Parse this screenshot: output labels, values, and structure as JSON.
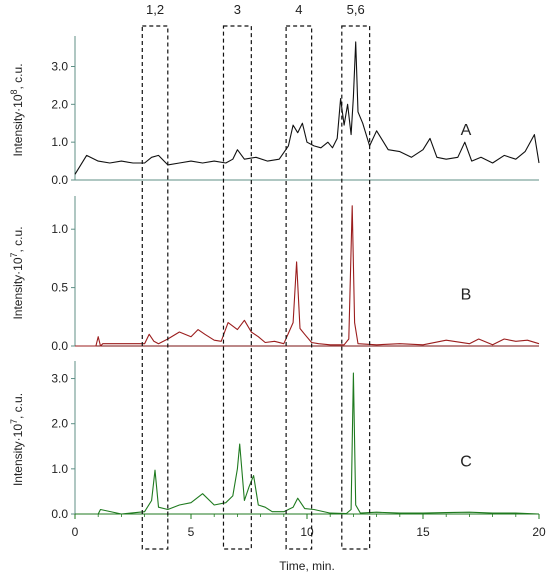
{
  "chart_data": {
    "type": "line",
    "xlabel": "Time, min.",
    "x_ticks": [
      "0",
      "5",
      "10",
      "15",
      "20"
    ],
    "xlim": [
      0,
      20
    ],
    "regions": [
      {
        "label": "1,2",
        "x_range": [
          2.9,
          4.0
        ]
      },
      {
        "label": "3",
        "x_range": [
          6.4,
          7.6
        ]
      },
      {
        "label": "4",
        "x_range": [
          9.1,
          10.2
        ]
      },
      {
        "label": "5,6",
        "x_range": [
          11.5,
          12.7
        ]
      }
    ],
    "panels": [
      {
        "letter": "A",
        "ylabel_prefix": "Intensity·10",
        "ylabel_exp": "8",
        "ylabel_suffix": ", c.u.",
        "ylim": [
          0,
          3.7
        ],
        "y_ticks": [
          "0.0",
          "1.0",
          "2.0",
          "3.0"
        ],
        "color": "#111111",
        "baseline_color": "#5f8f86",
        "x": [
          0,
          0.5,
          1.0,
          1.5,
          2.0,
          2.5,
          3.0,
          3.3,
          3.6,
          4.0,
          4.5,
          5.0,
          5.5,
          6.0,
          6.5,
          6.8,
          7.0,
          7.3,
          7.8,
          8.3,
          8.8,
          9.2,
          9.4,
          9.6,
          9.8,
          10.0,
          10.3,
          10.6,
          10.9,
          11.1,
          11.3,
          11.45,
          11.6,
          11.75,
          11.9,
          12.0,
          12.1,
          12.2,
          12.4,
          12.7,
          13.0,
          13.5,
          14.0,
          14.5,
          15.0,
          15.3,
          15.6,
          16.0,
          16.5,
          16.8,
          17.1,
          17.5,
          18.0,
          18.5,
          19.0,
          19.4,
          19.8,
          20.0
        ],
        "y": [
          0.15,
          0.65,
          0.5,
          0.45,
          0.5,
          0.45,
          0.45,
          0.6,
          0.65,
          0.4,
          0.45,
          0.5,
          0.45,
          0.5,
          0.45,
          0.55,
          0.8,
          0.55,
          0.6,
          0.5,
          0.55,
          0.9,
          1.45,
          1.25,
          1.5,
          1.0,
          0.9,
          0.85,
          1.0,
          0.85,
          1.1,
          2.15,
          1.45,
          2.0,
          1.2,
          2.2,
          3.65,
          1.8,
          1.5,
          0.9,
          1.3,
          0.8,
          0.75,
          0.6,
          0.8,
          1.1,
          0.6,
          0.55,
          0.6,
          1.0,
          0.5,
          0.6,
          0.45,
          0.65,
          0.55,
          0.75,
          1.2,
          0.45
        ]
      },
      {
        "letter": "B",
        "ylabel_prefix": "Intensity·10",
        "ylabel_exp": "7",
        "ylabel_suffix": ", c.u.",
        "ylim": [
          0,
          1.25
        ],
        "y_ticks": [
          "0.0",
          "0.5",
          "1.0"
        ],
        "color": "#9b1d1d",
        "baseline_color": "#7a1010",
        "x": [
          0,
          0.9,
          1.0,
          1.1,
          1.2,
          3.0,
          3.2,
          3.4,
          3.6,
          4.0,
          4.5,
          5.0,
          5.3,
          5.6,
          6.0,
          6.3,
          6.6,
          7.0,
          7.3,
          7.6,
          7.9,
          8.2,
          8.6,
          9.0,
          9.4,
          9.55,
          9.7,
          9.9,
          10.2,
          10.5,
          11.0,
          11.6,
          11.8,
          11.95,
          12.05,
          12.2,
          13.0,
          14.0,
          15.0,
          16.0,
          17.0,
          17.4,
          18.0,
          18.5,
          19.0,
          19.5,
          20.0
        ],
        "y": [
          0,
          0,
          0.08,
          0,
          0.02,
          0.02,
          0.1,
          0.04,
          0.02,
          0.06,
          0.12,
          0.08,
          0.14,
          0.1,
          0.05,
          0.04,
          0.2,
          0.14,
          0.22,
          0.12,
          0.08,
          0.03,
          0.04,
          0.02,
          0.2,
          0.72,
          0.15,
          0.1,
          0.03,
          0.02,
          0.01,
          0.01,
          0.06,
          1.2,
          0.2,
          0.02,
          0.01,
          0.02,
          0.01,
          0.05,
          0.02,
          0.06,
          0.01,
          0.06,
          0.04,
          0.05,
          0.02
        ]
      },
      {
        "letter": "C",
        "ylabel_prefix": "Intensity·10",
        "ylabel_exp": "7",
        "ylabel_suffix": ", c.u.",
        "ylim": [
          0,
          3.3
        ],
        "y_ticks": [
          "0.0",
          "1.0",
          "2.0",
          "3.0"
        ],
        "color": "#1f7a1f",
        "baseline_color": "#1f7a1f",
        "x": [
          0,
          1.0,
          1.1,
          2.0,
          3.0,
          3.3,
          3.45,
          3.6,
          4.0,
          4.5,
          5.0,
          5.5,
          6.0,
          6.5,
          6.8,
          7.0,
          7.1,
          7.3,
          7.5,
          7.7,
          7.9,
          8.2,
          8.5,
          9.0,
          9.4,
          9.6,
          9.9,
          10.3,
          11.0,
          11.7,
          11.9,
          12.0,
          12.1,
          12.3,
          13.0,
          14.0,
          15.0,
          16.0,
          17.0,
          18.0,
          19.0,
          20.0
        ],
        "y": [
          0,
          0,
          0.1,
          0,
          0.05,
          0.3,
          0.97,
          0.15,
          0.1,
          0.2,
          0.25,
          0.45,
          0.2,
          0.25,
          0.4,
          1.0,
          1.55,
          0.3,
          0.6,
          0.85,
          0.2,
          0.15,
          0.05,
          0.05,
          0.15,
          0.35,
          0.12,
          0.1,
          0.02,
          0.01,
          0.1,
          3.12,
          0.2,
          0.02,
          0.04,
          0.02,
          0.02,
          0.03,
          0.04,
          0.02,
          0.02,
          0.0
        ]
      }
    ]
  }
}
